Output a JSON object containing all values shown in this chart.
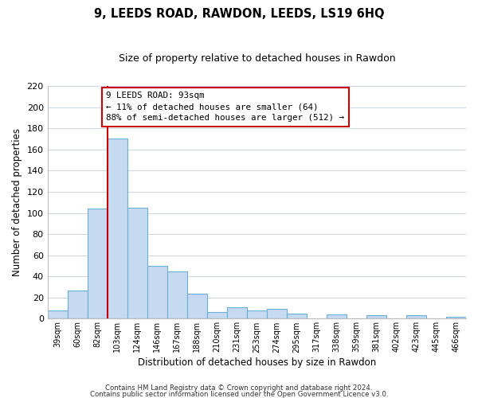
{
  "title": "9, LEEDS ROAD, RAWDON, LEEDS, LS19 6HQ",
  "subtitle": "Size of property relative to detached houses in Rawdon",
  "xlabel": "Distribution of detached houses by size in Rawdon",
  "ylabel": "Number of detached properties",
  "bar_labels": [
    "39sqm",
    "60sqm",
    "82sqm",
    "103sqm",
    "124sqm",
    "146sqm",
    "167sqm",
    "188sqm",
    "210sqm",
    "231sqm",
    "253sqm",
    "274sqm",
    "295sqm",
    "317sqm",
    "338sqm",
    "359sqm",
    "381sqm",
    "402sqm",
    "423sqm",
    "445sqm",
    "466sqm"
  ],
  "bar_values": [
    8,
    27,
    104,
    170,
    105,
    50,
    45,
    24,
    6,
    11,
    8,
    9,
    5,
    0,
    4,
    0,
    3,
    0,
    3,
    0,
    2
  ],
  "bar_color": "#c5d9f0",
  "bar_edge_color": "#6baed6",
  "ylim": [
    0,
    220
  ],
  "yticks": [
    0,
    20,
    40,
    60,
    80,
    100,
    120,
    140,
    160,
    180,
    200,
    220
  ],
  "vline_color": "#cc0000",
  "annotation_title": "9 LEEDS ROAD: 93sqm",
  "annotation_line1": "← 11% of detached houses are smaller (64)",
  "annotation_line2": "88% of semi-detached houses are larger (512) →",
  "annotation_box_color": "#ffffff",
  "annotation_box_edge_color": "#cc0000",
  "footer1": "Contains HM Land Registry data © Crown copyright and database right 2024.",
  "footer2": "Contains public sector information licensed under the Open Government Licence v3.0.",
  "background_color": "#ffffff",
  "grid_color": "#c8d8ec"
}
